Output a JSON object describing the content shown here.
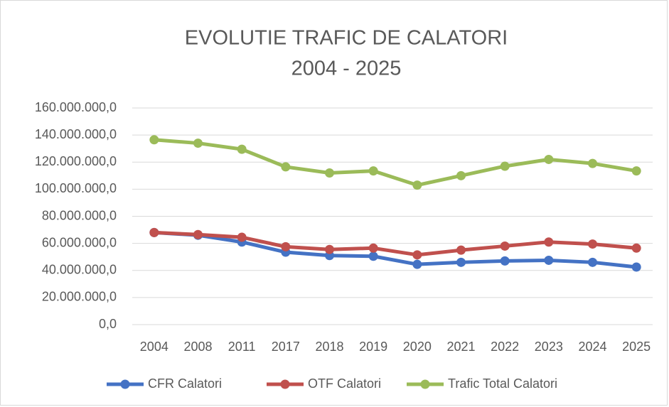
{
  "chart_data": {
    "type": "line",
    "title": "EVOLUTIE TRAFIC DE CALATORI",
    "subtitle": "2004 - 2025",
    "categories": [
      "2004",
      "2008",
      "2011",
      "2017",
      "2018",
      "2019",
      "2020",
      "2021",
      "2022",
      "2023",
      "2024",
      "2025"
    ],
    "series": [
      {
        "name": "CFR Calatori",
        "color": "#4472c4",
        "values": [
          68000000,
          66000000,
          61000000,
          53500000,
          51000000,
          50500000,
          44500000,
          46000000,
          47000000,
          47500000,
          46000000,
          42500000
        ]
      },
      {
        "name": "OTF Calatori",
        "color": "#c0504d",
        "values": [
          68000000,
          66500000,
          64500000,
          57500000,
          55500000,
          56500000,
          51500000,
          55000000,
          58000000,
          61000000,
          59500000,
          56500000
        ]
      },
      {
        "name": "Trafic Total Calatori",
        "color": "#9bbb59",
        "values": [
          136500000,
          134000000,
          129500000,
          116500000,
          112000000,
          113500000,
          103000000,
          110000000,
          117000000,
          122000000,
          119000000,
          113500000
        ]
      }
    ],
    "ylim": [
      0,
      160000000
    ],
    "yticks": [
      {
        "value": 0,
        "label": "0,0"
      },
      {
        "value": 20000000,
        "label": "20.000.000,0"
      },
      {
        "value": 40000000,
        "label": "40.000.000,0"
      },
      {
        "value": 60000000,
        "label": "60.000.000,0"
      },
      {
        "value": 80000000,
        "label": "80.000.000,0"
      },
      {
        "value": 100000000,
        "label": "100.000.000,0"
      },
      {
        "value": 120000000,
        "label": "120.000.000,0"
      },
      {
        "value": 140000000,
        "label": "140.000.000,0"
      },
      {
        "value": 160000000,
        "label": "160.000.000,0"
      }
    ],
    "grid": true,
    "legend": "bottom"
  }
}
